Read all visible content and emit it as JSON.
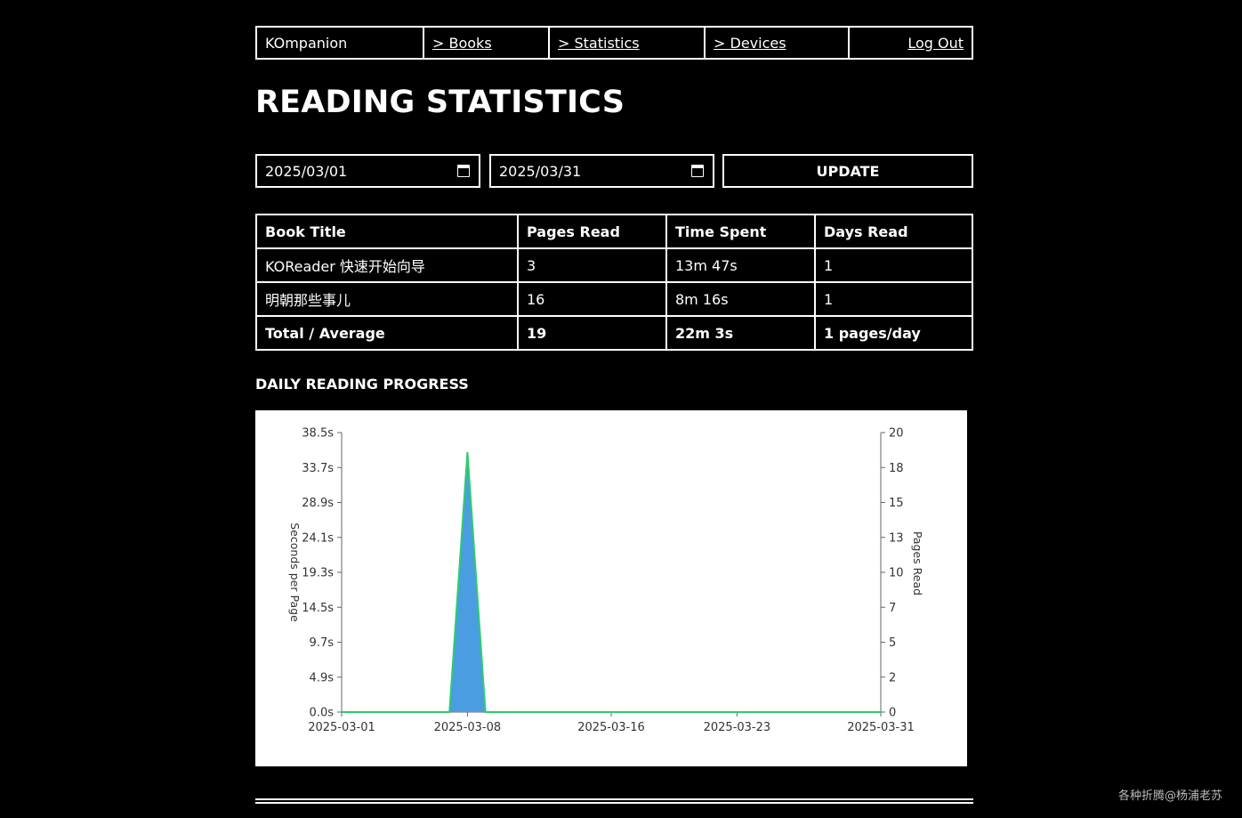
{
  "nav": {
    "brand": "KOmpanion",
    "books": "> Books",
    "statistics": "> Statistics",
    "devices": "> Devices",
    "logout": "Log Out"
  },
  "page_title": "READING STATISTICS",
  "filters": {
    "start_date": "2025/03/01",
    "end_date": "2025/03/31",
    "update_label": "UPDATE"
  },
  "table": {
    "headers": [
      "Book Title",
      "Pages Read",
      "Time Spent",
      "Days Read"
    ],
    "rows": [
      [
        "KOReader 快速开始向导",
        "3",
        "13m 47s",
        "1"
      ],
      [
        "明朝那些事儿",
        "16",
        "8m 16s",
        "1"
      ]
    ],
    "total": [
      "Total / Average",
      "19",
      "22m 3s",
      "1 pages/day"
    ]
  },
  "section_title": "DAILY READING PROGRESS",
  "chart_data": {
    "type": "area",
    "title": "",
    "xlabel": "",
    "ylabel": "Seconds per Page",
    "y2label": "Pages Read",
    "x_ticks": [
      "2025-03-01",
      "2025-03-08",
      "2025-03-16",
      "2025-03-23",
      "2025-03-31"
    ],
    "y_ticks": [
      "0.0s",
      "4.9s",
      "9.7s",
      "14.5s",
      "19.3s",
      "24.1s",
      "28.9s",
      "33.7s",
      "38.5s"
    ],
    "y2_ticks": [
      "0",
      "2",
      "5",
      "7",
      "10",
      "13",
      "15",
      "18",
      "20"
    ],
    "ylim": [
      0,
      38.5
    ],
    "y2lim": [
      0,
      20
    ],
    "x_range": [
      "2025-03-01",
      "2025-03-31"
    ],
    "grid": false,
    "series": [
      {
        "name": "Seconds per Page",
        "axis": "left",
        "color": "#4a9de0",
        "x": [
          "2025-03-01",
          "2025-03-02",
          "2025-03-03",
          "2025-03-04",
          "2025-03-05",
          "2025-03-06",
          "2025-03-07",
          "2025-03-08",
          "2025-03-09",
          "2025-03-10",
          "2025-03-11",
          "2025-03-12",
          "2025-03-13",
          "2025-03-14",
          "2025-03-15",
          "2025-03-16",
          "2025-03-17",
          "2025-03-18",
          "2025-03-19",
          "2025-03-20",
          "2025-03-21",
          "2025-03-22",
          "2025-03-23",
          "2025-03-24",
          "2025-03-25",
          "2025-03-26",
          "2025-03-27",
          "2025-03-28",
          "2025-03-29",
          "2025-03-30",
          "2025-03-31"
        ],
        "values": [
          0,
          0,
          0,
          0,
          0,
          0,
          0,
          35.8,
          0,
          0,
          0,
          0,
          0,
          0,
          0,
          0,
          0,
          0,
          0,
          0,
          0,
          0,
          0,
          0,
          0,
          0,
          0,
          0,
          0,
          0,
          0
        ]
      },
      {
        "name": "Pages Read",
        "axis": "right",
        "color": "#2ecc71",
        "x": [
          "2025-03-01",
          "2025-03-02",
          "2025-03-03",
          "2025-03-04",
          "2025-03-05",
          "2025-03-06",
          "2025-03-07",
          "2025-03-08",
          "2025-03-09",
          "2025-03-10",
          "2025-03-11",
          "2025-03-12",
          "2025-03-13",
          "2025-03-14",
          "2025-03-15",
          "2025-03-16",
          "2025-03-17",
          "2025-03-18",
          "2025-03-19",
          "2025-03-20",
          "2025-03-21",
          "2025-03-22",
          "2025-03-23",
          "2025-03-24",
          "2025-03-25",
          "2025-03-26",
          "2025-03-27",
          "2025-03-28",
          "2025-03-29",
          "2025-03-30",
          "2025-03-31"
        ],
        "values": [
          0,
          0,
          0,
          0,
          0,
          0,
          0,
          18.6,
          0,
          0,
          0,
          0,
          0,
          0,
          0,
          0,
          0,
          0,
          0,
          0,
          0,
          0,
          0,
          0,
          0,
          0,
          0,
          0,
          0,
          0,
          0
        ]
      }
    ]
  },
  "watermark": "各种折腾@杨浦老苏"
}
